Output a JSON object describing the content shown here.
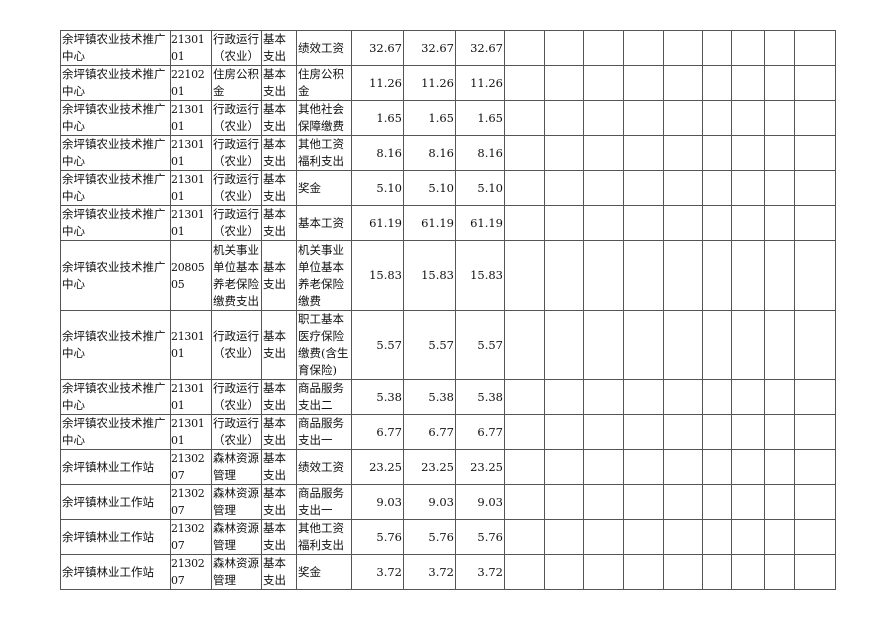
{
  "rows": [
    {
      "unit": "余坪镇农业技术推广中心",
      "code": "2130101",
      "func": "行政运行（农业）",
      "type": "基本支出",
      "item": "绩效工资",
      "v1": "32.67",
      "v2": "32.67",
      "v3": "32.67"
    },
    {
      "unit": "余坪镇农业技术推广中心",
      "code": "2210201",
      "func": "住房公积金",
      "type": "基本支出",
      "item": "住房公积金",
      "v1": "11.26",
      "v2": "11.26",
      "v3": "11.26"
    },
    {
      "unit": "余坪镇农业技术推广中心",
      "code": "2130101",
      "func": "行政运行（农业）",
      "type": "基本支出",
      "item": "其他社会保障缴费",
      "v1": "1.65",
      "v2": "1.65",
      "v3": "1.65"
    },
    {
      "unit": "余坪镇农业技术推广中心",
      "code": "2130101",
      "func": "行政运行（农业）",
      "type": "基本支出",
      "item": "其他工资福利支出",
      "v1": "8.16",
      "v2": "8.16",
      "v3": "8.16"
    },
    {
      "unit": "余坪镇农业技术推广中心",
      "code": "2130101",
      "func": "行政运行（农业）",
      "type": "基本支出",
      "item": "奖金",
      "v1": "5.10",
      "v2": "5.10",
      "v3": "5.10"
    },
    {
      "unit": "余坪镇农业技术推广中心",
      "code": "2130101",
      "func": "行政运行（农业）",
      "type": "基本支出",
      "item": "基本工资",
      "v1": "61.19",
      "v2": "61.19",
      "v3": "61.19"
    },
    {
      "unit": "余坪镇农业技术推广中心",
      "code": "2080505",
      "func": "机关事业单位基本养老保险缴费支出",
      "type": "基本支出",
      "item": "机关事业单位基本养老保险缴费",
      "v1": "15.83",
      "v2": "15.83",
      "v3": "15.83"
    },
    {
      "unit": "余坪镇农业技术推广中心",
      "code": "2130101",
      "func": "行政运行（农业）",
      "type": "基本支出",
      "item": "职工基本医疗保险缴费(含生育保险)",
      "v1": "5.57",
      "v2": "5.57",
      "v3": "5.57"
    },
    {
      "unit": "余坪镇农业技术推广中心",
      "code": "2130101",
      "func": "行政运行（农业）",
      "type": "基本支出",
      "item": "商品服务支出二",
      "v1": "5.38",
      "v2": "5.38",
      "v3": "5.38"
    },
    {
      "unit": "余坪镇农业技术推广中心",
      "code": "2130101",
      "func": "行政运行（农业）",
      "type": "基本支出",
      "item": "商品服务支出一",
      "v1": "6.77",
      "v2": "6.77",
      "v3": "6.77"
    },
    {
      "unit": "余坪镇林业工作站",
      "code": "2130207",
      "func": "森林资源管理",
      "type": "基本支出",
      "item": "绩效工资",
      "v1": "23.25",
      "v2": "23.25",
      "v3": "23.25"
    },
    {
      "unit": "余坪镇林业工作站",
      "code": "2130207",
      "func": "森林资源管理",
      "type": "基本支出",
      "item": "商品服务支出一",
      "v1": "9.03",
      "v2": "9.03",
      "v3": "9.03"
    },
    {
      "unit": "余坪镇林业工作站",
      "code": "2130207",
      "func": "森林资源管理",
      "type": "基本支出",
      "item": "其他工资福利支出",
      "v1": "5.76",
      "v2": "5.76",
      "v3": "5.76"
    },
    {
      "unit": "余坪镇林业工作站",
      "code": "2130207",
      "func": "森林资源管理",
      "type": "基本支出",
      "item": "奖金",
      "v1": "3.72",
      "v2": "3.72",
      "v3": "3.72"
    }
  ]
}
